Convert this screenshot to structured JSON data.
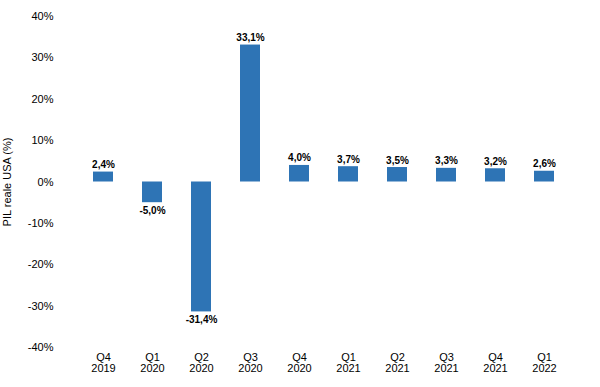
{
  "chart_data": {
    "type": "bar",
    "ylabel": "PIL reale USA (%)",
    "categories": [
      "Q4\n2019",
      "Q1\n2020",
      "Q2\n2020",
      "Q3\n2020",
      "Q4\n2020",
      "Q1\n2021",
      "Q2\n2021",
      "Q3\n2021",
      "Q4\n2021",
      "Q1\n2022"
    ],
    "values": [
      2.4,
      -5.0,
      -31.4,
      33.1,
      4.0,
      3.7,
      3.5,
      3.3,
      3.2,
      2.6
    ],
    "value_labels": [
      "2,4%",
      "-5,0%",
      "-31,4%",
      "33,1%",
      "4,0%",
      "3,7%",
      "3,5%",
      "3,3%",
      "3,2%",
      "2,6%"
    ],
    "data_labels": true,
    "color": "#2E74B5",
    "ylim": [
      -40,
      40
    ],
    "yticks": [
      {
        "value": -40,
        "label": "-40%"
      },
      {
        "value": -30,
        "label": "-30%"
      },
      {
        "value": -20,
        "label": "-20%"
      },
      {
        "value": -10,
        "label": "-10%"
      },
      {
        "value": 0,
        "label": "0%"
      },
      {
        "value": 10,
        "label": "10%"
      },
      {
        "value": 20,
        "label": "20%"
      },
      {
        "value": 30,
        "label": "30%"
      },
      {
        "value": 40,
        "label": "40%"
      }
    ],
    "grid": false
  }
}
